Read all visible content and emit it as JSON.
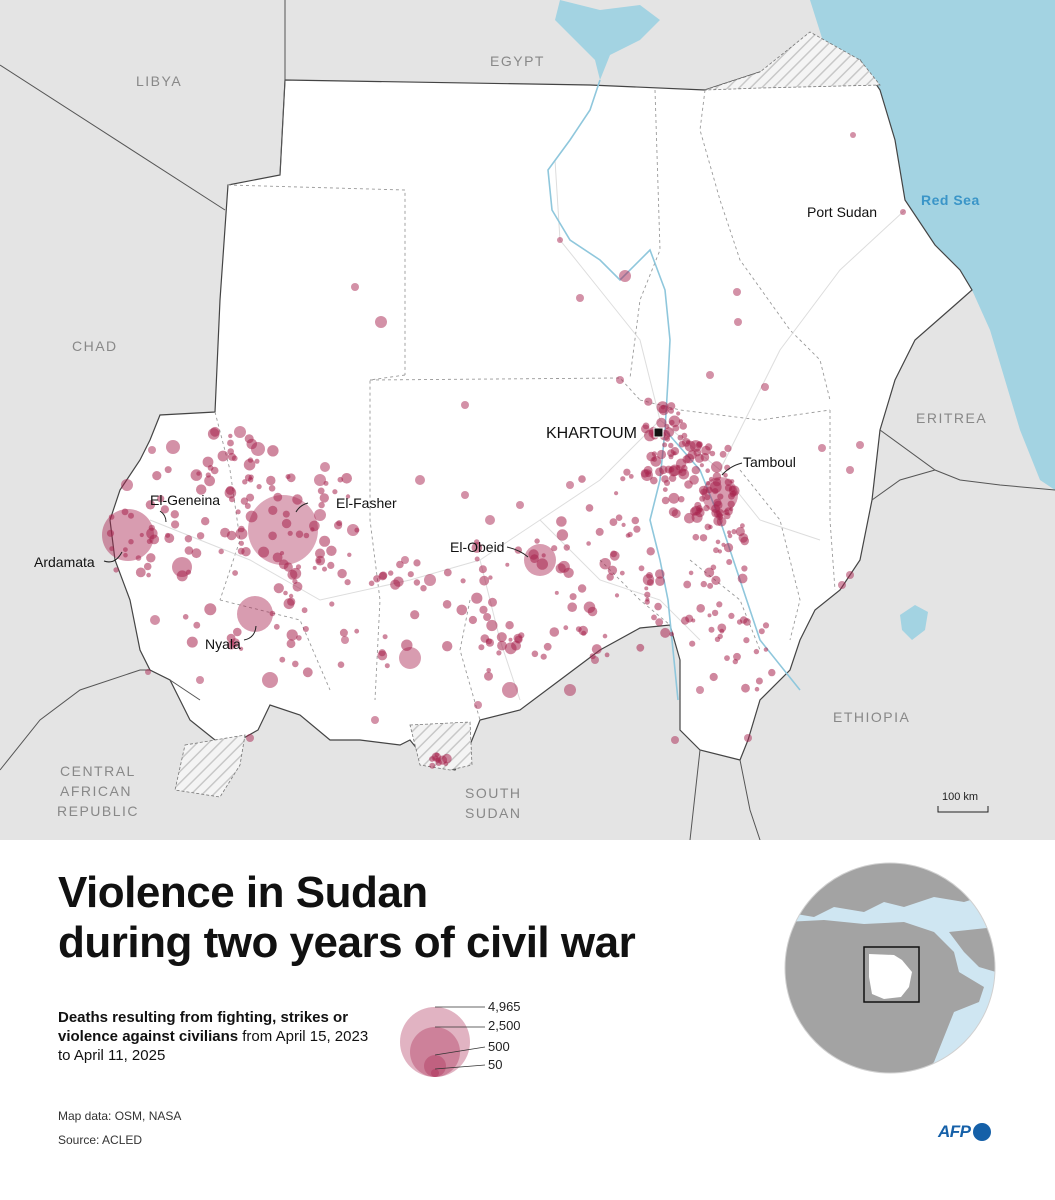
{
  "map": {
    "countries": [
      "LIBYA",
      "EGYPT",
      "CHAD",
      "ERITREA",
      "ETHIOPIA",
      "CENTRAL",
      "AFRICAN",
      "REPUBLIC",
      "SOUTH",
      "SUDAN"
    ],
    "capital": "KHARTOUM",
    "cities": [
      "Port Sudan",
      "Tamboul",
      "El-Geneina",
      "El-Fasher",
      "El-Obeid",
      "Ardamata",
      "Nyala"
    ],
    "sea": "Red Sea",
    "scale": "100 km",
    "colors": {
      "land": "#e4e4e4",
      "sudan": "#ffffff",
      "sea": "#a3d3e2",
      "marker": "#a8244f",
      "border": "#555555"
    }
  },
  "title": {
    "line1": "Violence in Sudan",
    "line2": "during two years of civil war"
  },
  "subtitle": {
    "bold": "Deaths resulting from fighting, strikes or violence against civilians",
    "rest": " from April 15, 2023 to April 11, 2025"
  },
  "legend": {
    "values": [
      "4,965",
      "2,500",
      "500",
      "50"
    ]
  },
  "credits": {
    "mapdata": "Map data: OSM, NASA",
    "source": "Source: ACLED"
  },
  "logo": "AFP",
  "marker_icon": "circle-icon",
  "capital_icon": "square-icon"
}
